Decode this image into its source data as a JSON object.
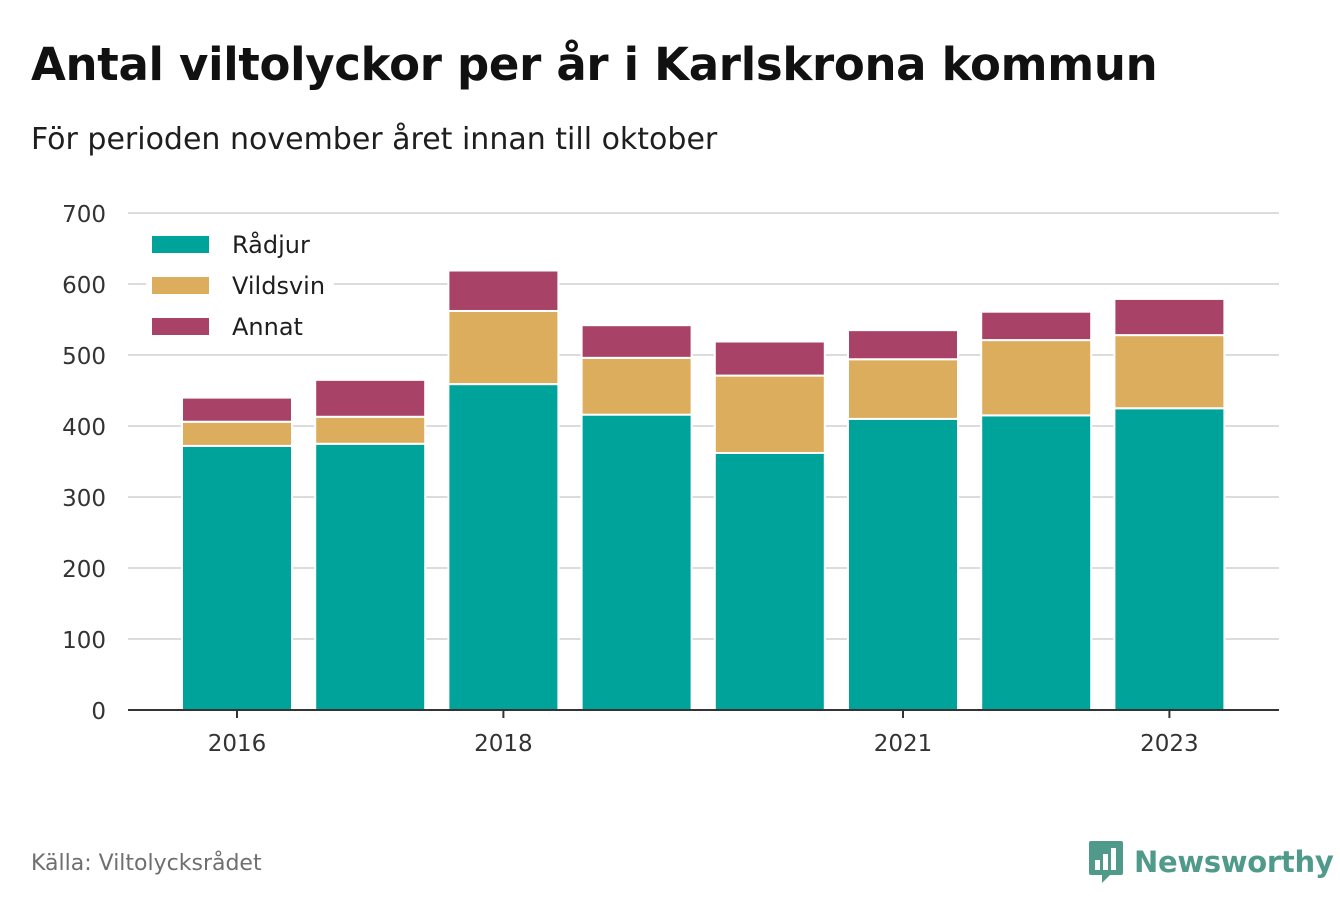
{
  "header": {
    "title": "Antal viltolyckor per år i Karlskrona kommun",
    "subtitle": "För perioden november året innan till oktober"
  },
  "footer": {
    "source": "Källa: Viltolycksrådet",
    "brand": "Newsworthy",
    "brand_icon": "newsworthy-logo-icon"
  },
  "chart_data": {
    "type": "bar",
    "stacked": true,
    "title": "Antal viltolyckor per år i Karlskrona kommun",
    "subtitle": "För perioden november året innan till oktober",
    "xlabel": "",
    "ylabel": "",
    "categories": [
      "2016",
      "2017",
      "2018",
      "2019",
      "2020",
      "2021",
      "2022",
      "2023"
    ],
    "x_tick_labels": [
      "2016",
      "2018",
      "2021",
      "2023"
    ],
    "y_ticks": [
      0,
      100,
      200,
      300,
      400,
      500,
      600,
      700
    ],
    "ylim": [
      0,
      700
    ],
    "grid": true,
    "legend_position": "top-left",
    "series": [
      {
        "name": "Rådjur",
        "color": "#00a39a",
        "values": [
          372,
          375,
          459,
          416,
          362,
          410,
          415,
          425
        ]
      },
      {
        "name": "Vildsvin",
        "color": "#dbad5c",
        "values": [
          34,
          38,
          103,
          80,
          109,
          84,
          106,
          103
        ]
      },
      {
        "name": "Annat",
        "color": "#a84267",
        "values": [
          34,
          52,
          57,
          46,
          48,
          41,
          40,
          51
        ]
      }
    ]
  }
}
